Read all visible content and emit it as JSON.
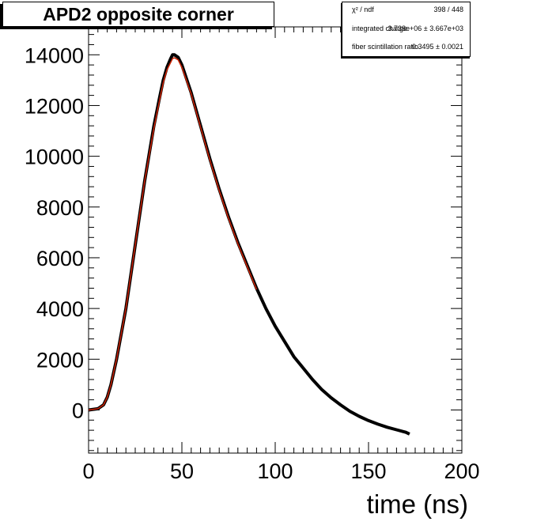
{
  "title": "APD2 opposite corner",
  "stats_box": {
    "rows": [
      {
        "label": "χ² / ndf",
        "value": "398 / 448"
      },
      {
        "label": "integrated charge",
        "value": "3.738e+06 ± 3.667e+03"
      },
      {
        "label": "fiber scintillation ratio",
        "value": "0.3495 ± 0.0021"
      }
    ]
  },
  "chart_data": {
    "type": "line",
    "title": "APD2 opposite corner",
    "xlabel": "time (ns)",
    "ylabel": "",
    "xlim": [
      0,
      200
    ],
    "ylim": [
      -1700,
      15100
    ],
    "x_ticks": [
      0,
      50,
      100,
      150,
      200
    ],
    "y_ticks": [
      0,
      2000,
      4000,
      6000,
      8000,
      10000,
      12000,
      14000
    ],
    "grid": false,
    "series": [
      {
        "color": "#000000",
        "x": [
          0,
          5,
          8,
          10,
          12,
          15,
          18,
          20,
          25,
          30,
          35,
          38,
          40,
          42,
          44,
          45,
          46,
          48,
          50,
          55,
          60,
          65,
          70,
          75,
          80,
          85,
          90,
          95,
          100,
          105,
          110,
          115,
          120,
          125,
          130,
          135,
          140,
          145,
          150,
          155,
          160,
          165,
          170,
          172
        ],
        "values": [
          0,
          50,
          200,
          500,
          1000,
          2000,
          3200,
          4000,
          6500,
          9000,
          11200,
          12300,
          13000,
          13500,
          13850,
          14000,
          14000,
          13900,
          13600,
          12500,
          11200,
          9900,
          8700,
          7600,
          6600,
          5700,
          4800,
          4000,
          3300,
          2700,
          2100,
          1650,
          1200,
          800,
          480,
          200,
          -50,
          -250,
          -420,
          -560,
          -680,
          -780,
          -880,
          -950
        ]
      },
      {
        "color": "#cc2200",
        "x": [
          0,
          5,
          8,
          10,
          12,
          15,
          18,
          20,
          25,
          30,
          35,
          38,
          40,
          42,
          44,
          45,
          46,
          48,
          50,
          55,
          60,
          65,
          70,
          75,
          80,
          85,
          90
        ],
        "values": [
          0,
          50,
          200,
          500,
          1000,
          2000,
          3200,
          4000,
          6500,
          9000,
          11100,
          12200,
          12900,
          13400,
          13700,
          13850,
          13880,
          13800,
          13500,
          12450,
          11150,
          9850,
          8650,
          7550,
          6550,
          5650,
          4750
        ]
      }
    ]
  }
}
